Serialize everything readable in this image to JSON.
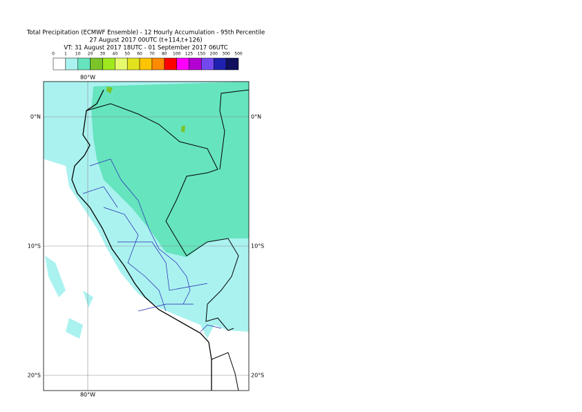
{
  "header": {
    "title": "Total Precipitation (ECMWF Ensemble) - 12 Hourly Accumulation - 95th Percentile",
    "run": "27 August 2017 00UTC (t+114,t+126)",
    "valid": "VT: 31 August 2017 18UTC - 01 September 2017 06UTC"
  },
  "legend": {
    "labels": [
      "0",
      "1",
      "10",
      "20",
      "30",
      "40",
      "50",
      "60",
      "70",
      "80",
      "100",
      "125",
      "150",
      "200",
      "300",
      "500"
    ],
    "colors": [
      "#ffffff",
      "#aaf2f0",
      "#66e4be",
      "#7ac42a",
      "#9ee81e",
      "#e6fa6e",
      "#e2e21e",
      "#ffc400",
      "#ff8a00",
      "#ff0000",
      "#ff00ff",
      "#b400d2",
      "#7448f0",
      "#2020b0",
      "#10105e"
    ]
  },
  "map": {
    "lon_labels": [
      "80°W",
      "80°W"
    ],
    "lat_labels": [
      "0°N",
      "0°N",
      "10°S",
      "10°S",
      "20°S",
      "20°S"
    ]
  }
}
